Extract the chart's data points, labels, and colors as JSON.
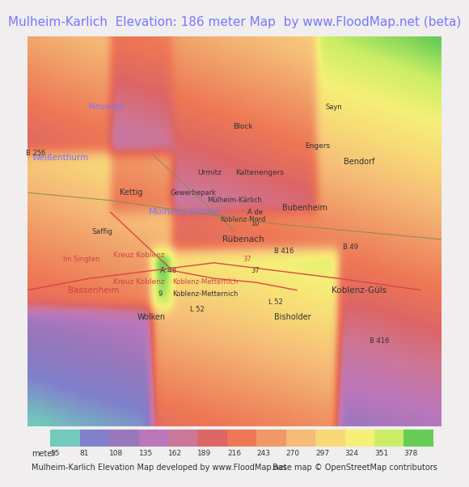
{
  "title": "Mulheim-Karlich  Elevation: 186 meter Map  by www.FloodMap.net (beta)",
  "title_color": "#7777ff",
  "title_fontsize": 11,
  "background_color": "#f0eeee",
  "map_bg": "#e8e8e8",
  "colorbar_values": [
    55,
    81,
    108,
    135,
    162,
    189,
    216,
    243,
    270,
    297,
    324,
    351,
    378
  ],
  "colorbar_colors": [
    "#72c9bc",
    "#8080cc",
    "#9977bb",
    "#bb77bb",
    "#cc7799",
    "#dd6666",
    "#ee7755",
    "#f09966",
    "#f5bb77",
    "#f8d877",
    "#f5f077",
    "#ccee66",
    "#66cc55"
  ],
  "footer_left": "Mulheim-Karlich Elevation Map developed by www.FloodMap.net",
  "footer_right": "Base map © OpenStreetMap contributors",
  "footer_fontsize": 7,
  "colorbar_label": "meter",
  "map_image_placeholder": true,
  "fig_width": 5.12,
  "fig_height": 5.82
}
